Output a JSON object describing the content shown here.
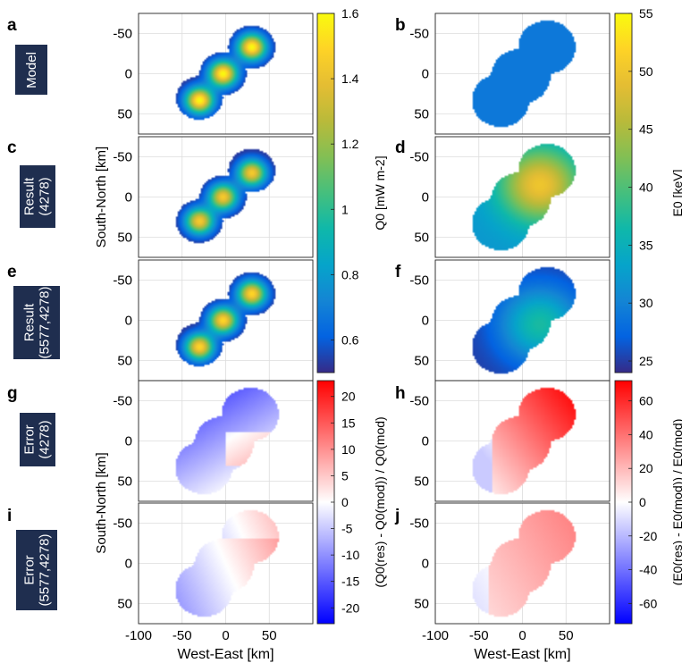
{
  "panel_letters": [
    "a",
    "b",
    "c",
    "d",
    "e",
    "f",
    "g",
    "h",
    "i",
    "j"
  ],
  "row_labels": [
    {
      "lines": [
        "Model"
      ]
    },
    {
      "lines": [
        "Result",
        "(4278)"
      ]
    },
    {
      "lines": [
        "Result",
        "(5577,4278)"
      ]
    },
    {
      "lines": [
        "Error",
        "(4278)"
      ]
    },
    {
      "lines": [
        "Error",
        "(5577,4278)"
      ]
    }
  ],
  "colors": {
    "row_label_bg": "#1f2e4f",
    "grid": "#dcdcdc"
  },
  "chart_data": [
    {
      "type": "heatmap",
      "panels": [
        "a",
        "c",
        "e"
      ],
      "title": "",
      "xlabel": "West-East [km]",
      "ylabel": "South-North [km]",
      "xlim": [
        -100,
        100
      ],
      "ylim": [
        -75,
        75
      ],
      "xticks": [
        -100,
        -50,
        0,
        50
      ],
      "yticks": [
        -50,
        0,
        50
      ],
      "colorbar": {
        "label": "Q0 [mW m-2]",
        "range": [
          0.5,
          1.6
        ],
        "ticks": [
          0.6,
          0.8,
          1,
          1.2,
          1.4,
          1.6
        ],
        "colormap": "parula"
      },
      "features": [
        {
          "panel": "a",
          "peaks": [
            {
              "x": -30,
              "y": 33,
              "value": 1.6
            },
            {
              "x": -3,
              "y": 0,
              "value": 1.6
            },
            {
              "x": 30,
              "y": -33,
              "value": 1.6
            }
          ],
          "background": 0.5
        },
        {
          "panel": "c",
          "peaks": [
            {
              "x": -30,
              "y": 30,
              "value": 1.45
            },
            {
              "x": -3,
              "y": 0,
              "value": 1.45
            },
            {
              "x": 30,
              "y": -30,
              "value": 1.45
            }
          ],
          "background": 0.5
        },
        {
          "panel": "e",
          "peaks": [
            {
              "x": -30,
              "y": 33,
              "value": 1.5
            },
            {
              "x": -3,
              "y": 0,
              "value": 1.5
            },
            {
              "x": 30,
              "y": -33,
              "value": 1.5
            }
          ],
          "background": 0.5
        }
      ]
    },
    {
      "type": "heatmap",
      "panels": [
        "b",
        "d",
        "f"
      ],
      "title": "",
      "xlabel": "West-East [km]",
      "ylabel": "",
      "xlim": [
        -100,
        100
      ],
      "ylim": [
        -75,
        75
      ],
      "xticks": [
        -100,
        -50,
        0,
        50
      ],
      "yticks": [
        -50,
        0,
        50
      ],
      "colorbar": {
        "label": "E0 [keV]",
        "range": [
          24,
          55
        ],
        "ticks": [
          25,
          30,
          35,
          40,
          45,
          50,
          55
        ],
        "colormap": "parula"
      },
      "features": [
        {
          "panel": "b",
          "uniform_value": 29
        },
        {
          "panel": "d",
          "peak": {
            "x": 20,
            "y": -15,
            "value": 50
          },
          "edge_value": 32
        },
        {
          "panel": "f",
          "peak": {
            "x": 20,
            "y": 5,
            "value": 37
          },
          "edge_value": 25
        }
      ]
    },
    {
      "type": "heatmap",
      "panels": [
        "g",
        "i"
      ],
      "title": "",
      "xlabel": "West-East [km]",
      "ylabel": "South-North [km]",
      "xlim": [
        -100,
        100
      ],
      "ylim": [
        -75,
        75
      ],
      "xticks": [
        -100,
        -50,
        0,
        50
      ],
      "yticks": [
        -50,
        0,
        50
      ],
      "colorbar": {
        "label": "(Q0(res) - Q0(mod)) / Q0(mod)",
        "range": [
          -23,
          23
        ],
        "ticks": [
          -20,
          -15,
          -10,
          -5,
          0,
          5,
          10,
          15,
          20
        ],
        "colormap": "blue-white-red"
      },
      "features": [
        {
          "panel": "g",
          "values": "mostly negative (about -10 to -20), blue in north and west"
        },
        {
          "panel": "i",
          "values": "mixed, about -8 to +8"
        }
      ]
    },
    {
      "type": "heatmap",
      "panels": [
        "h",
        "j"
      ],
      "title": "",
      "xlabel": "West-East [km]",
      "ylabel": "",
      "xlim": [
        -100,
        100
      ],
      "ylim": [
        -75,
        75
      ],
      "xticks": [
        -100,
        -50,
        0,
        50
      ],
      "yticks": [
        -50,
        0,
        50
      ],
      "colorbar": {
        "label": "(E0(res) - E0(mod)) / E0(mod)",
        "range": [
          -72,
          72
        ],
        "ticks": [
          -60,
          -40,
          -20,
          0,
          20,
          40,
          60
        ],
        "colormap": "blue-white-red"
      },
      "features": [
        {
          "panel": "h",
          "values": "strongly positive, up to about 70 in the north-east"
        },
        {
          "panel": "j",
          "values": "moderately positive, about 20 to 35"
        }
      ]
    }
  ]
}
